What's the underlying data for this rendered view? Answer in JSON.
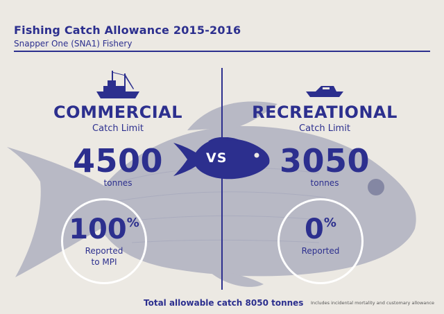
{
  "header": {
    "title": "Fishing Catch Allowance 2015-2016",
    "subtitle": "Snapper One (SNA1) Fishery"
  },
  "commercial": {
    "icon": "fishing-trawler-icon",
    "heading": "COMMERCIAL",
    "subheading": "Catch Limit",
    "limit": "4500",
    "unit": "tonnes",
    "reported_percent": "100",
    "percent_sign": "%",
    "reported_line1": "Reported",
    "reported_line2": "to MPI"
  },
  "recreational": {
    "icon": "speedboat-icon",
    "heading": "RECREATIONAL",
    "subheading": "Catch Limit",
    "limit": "3050",
    "unit": "tonnes",
    "reported_percent": "0",
    "percent_sign": "%",
    "reported_line1": "Reported"
  },
  "vs": {
    "icon": "snapper-fish-icon",
    "label": "VS"
  },
  "footer": {
    "total": "Total allowable catch 8050 tonnes",
    "note": "Includes incidental mortality and customary allowance"
  },
  "colors": {
    "accent": "#2c2f8e",
    "background": "#ece9e3",
    "circle": "#ffffff"
  }
}
